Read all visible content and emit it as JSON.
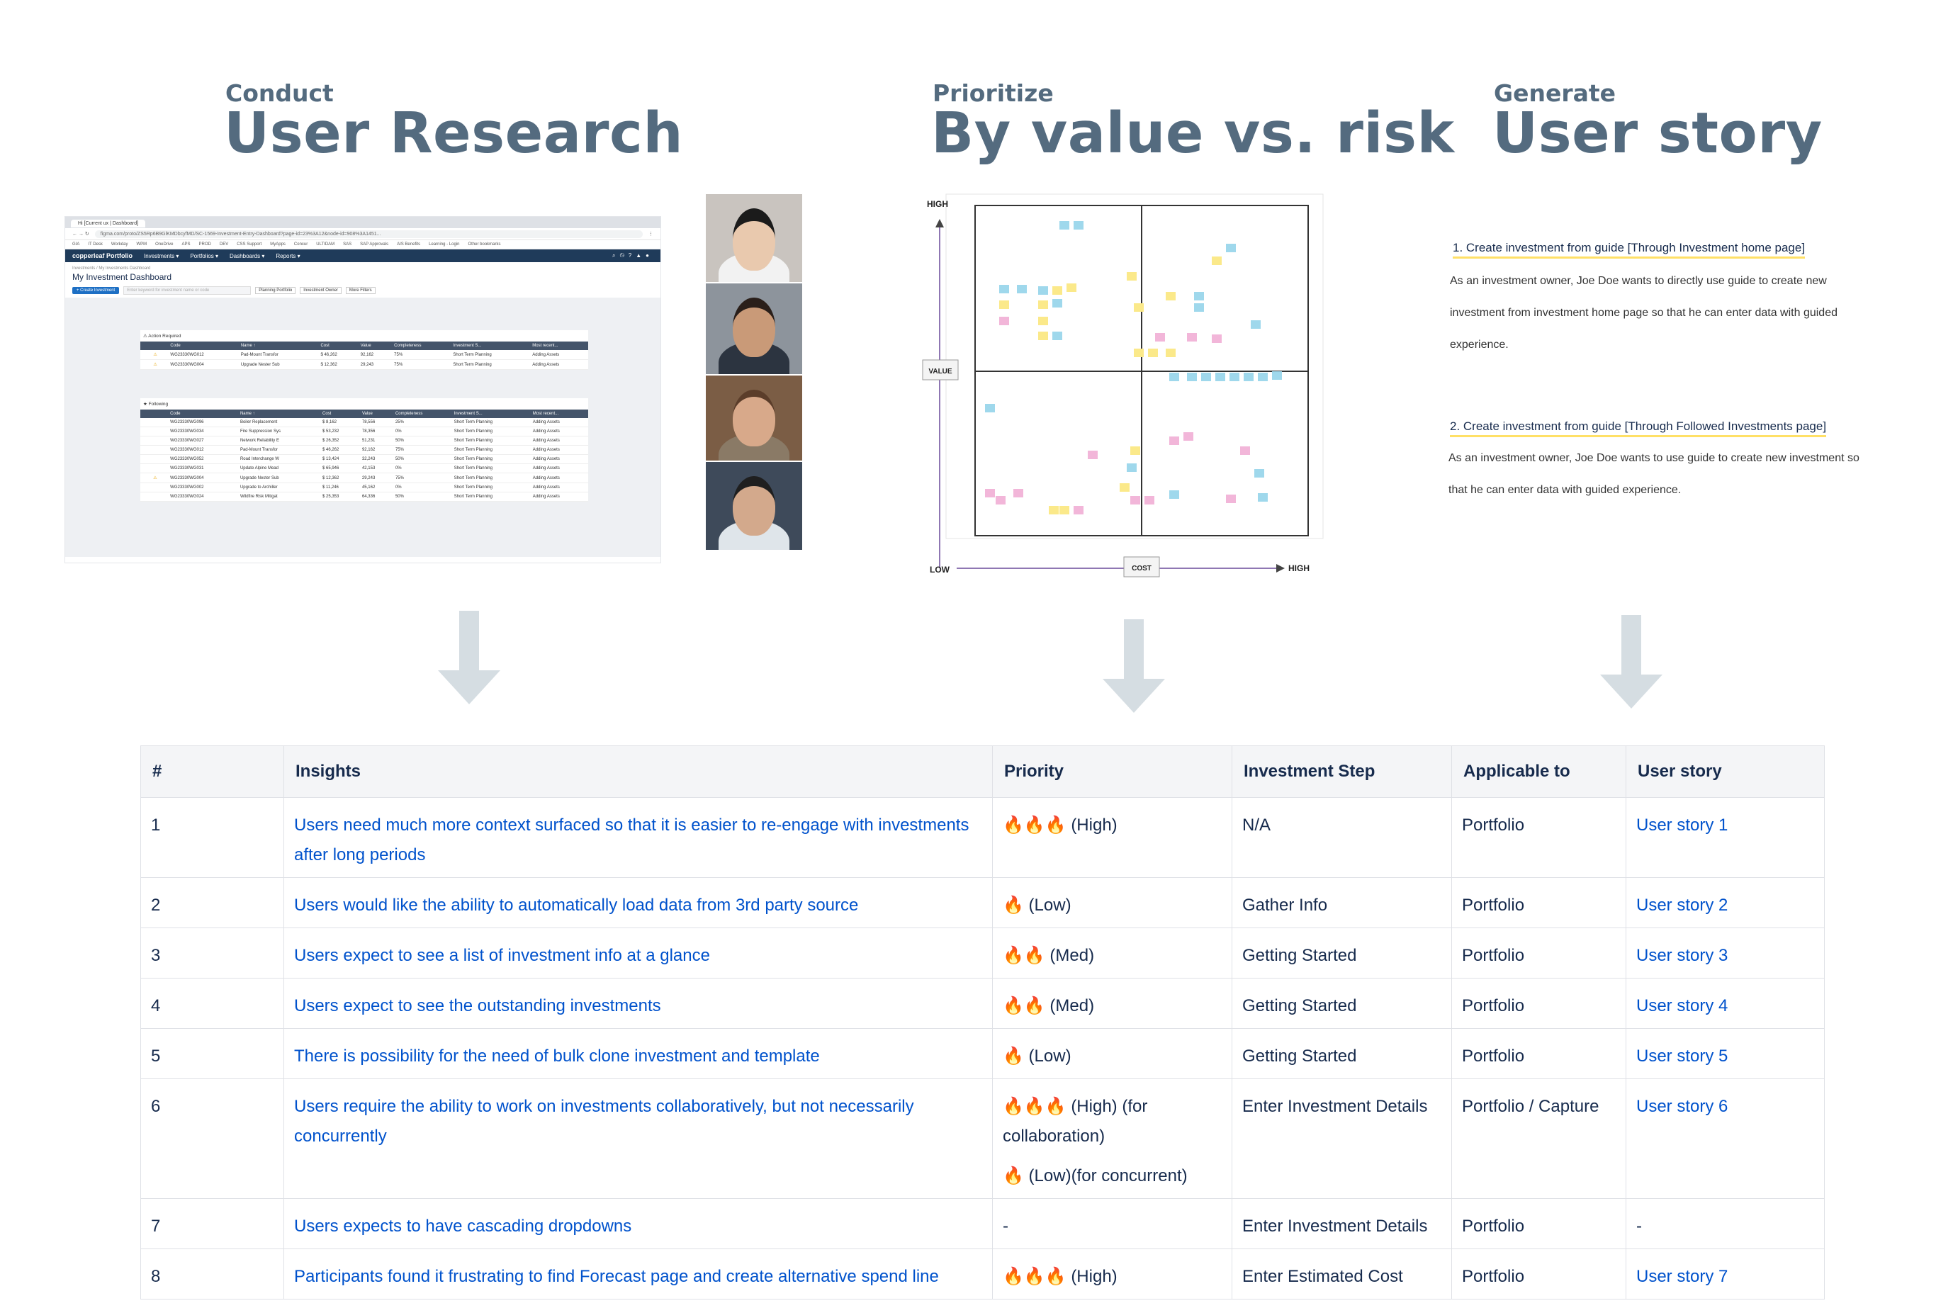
{
  "sections": [
    {
      "kicker": "Conduct",
      "title": "User Research"
    },
    {
      "kicker": "Prioritize",
      "title": "By value vs. risk"
    },
    {
      "kicker": "Generate",
      "title": "User story"
    }
  ],
  "browser": {
    "tab_label": "Hi [Current ux | Dashboard]",
    "url": "figma.com/proto/ZS5Rp6B9GlKMDbcyfMD/SC-1569-Investment-Entry-Dashboard?page-id=23%3A12&node-id=908%3A1451...",
    "bookmarks": [
      "GIA",
      "IT Desk",
      "Workday",
      "WPM",
      "OneDrive",
      "APS",
      "PROD",
      "DEV",
      "CSS Support",
      "MyApps",
      "Concur",
      "ULTIDAM",
      "SAS",
      "SAP Approvals",
      "AIS Benefits",
      "Learning - Login",
      "Other bookmarks"
    ],
    "brand": "copperleaf Portfolio",
    "nav": [
      "Investments ▾",
      "Portfolios ▾",
      "Dashboards ▾",
      "Reports ▾"
    ],
    "breadcrumb": "Investments / My Investments Dashboard",
    "page_title": "My Investment Dashboard",
    "create_button": "+ Create Investment",
    "search_placeholder": "Enter keyword for investment name or code",
    "filters": [
      "Planning Portfolio",
      "Investment Owner",
      "More Filters"
    ],
    "groups": [
      {
        "title": "⚠ Action Required",
        "columns": [
          "",
          "",
          "Code",
          "Name ↑",
          "Cost",
          "Value",
          "Completeness",
          "Investment S...",
          "Most recent..."
        ],
        "rows": [
          [
            "",
            "⚠",
            "WG23330WG012",
            "Pad-Mount Transfor",
            "$ 46,262",
            "92,162",
            "75%",
            "Short Term Planning",
            "Adding Assets"
          ],
          [
            "",
            "⚠",
            "WG23330WG004",
            "Upgrade Nester Sub",
            "$ 12,362",
            "29,243",
            "75%",
            "Short Term Planning",
            "Adding Assets"
          ]
        ]
      },
      {
        "title": "★ Following",
        "columns": [
          "",
          "",
          "Code",
          "Name ↑",
          "Cost",
          "Value",
          "Completeness",
          "Investment S...",
          "Most recent..."
        ],
        "rows": [
          [
            "",
            "",
            "WG23330WG096",
            "Boiler Replacement",
            "$ 8,162",
            "78,556",
            "25%",
            "Short Term Planning",
            "Adding Assets"
          ],
          [
            "",
            "",
            "WG23330WG034",
            "Fire Suppression Sys",
            "$ 53,232",
            "78,356",
            "0%",
            "Short Term Planning",
            "Adding Assets"
          ],
          [
            "",
            "",
            "WG23330WG027",
            "Network Reliability E",
            "$ 26,352",
            "51,231",
            "50%",
            "Short Term Planning",
            "Adding Assets"
          ],
          [
            "",
            "",
            "WG23330WG012",
            "Pad-Mount Transfor",
            "$ 46,262",
            "92,162",
            "75%",
            "Short Term Planning",
            "Adding Assets"
          ],
          [
            "",
            "",
            "WG23330WG052",
            "Road Interchange W",
            "$ 13,424",
            "32,243",
            "50%",
            "Short Term Planning",
            "Adding Assets"
          ],
          [
            "",
            "",
            "WG23330WG031",
            "Update Alpine Mead",
            "$ 65,946",
            "42,153",
            "0%",
            "Short Term Planning",
            "Adding Assets"
          ],
          [
            "",
            "⚠",
            "WG23330WG004",
            "Upgrade Nester Sub",
            "$ 12,362",
            "29,243",
            "75%",
            "Short Term Planning",
            "Adding Assets"
          ],
          [
            "",
            "",
            "WG23330WG002",
            "Upgrade to Archiller",
            "$ 11,246",
            "45,162",
            "0%",
            "Short Term Planning",
            "Adding Assets"
          ],
          [
            "",
            "",
            "WG23330WG024",
            "Wildfire Risk Mitigat",
            "$ 25,353",
            "64,336",
            "50%",
            "Short Term Planning",
            "Adding Assets"
          ]
        ]
      }
    ]
  },
  "matrix": {
    "y_high": "HIGH",
    "y_axis": "VALUE",
    "x_low": "LOW",
    "x_axis": "COST",
    "x_high": "HIGH",
    "note_colors": {
      "blue": "#9fd8ec",
      "yellow": "#fbe98a",
      "pink": "#f2b6d9"
    }
  },
  "stories": [
    {
      "title": "1. Create investment from guide [Through Investment home page]",
      "lines": [
        "As an investment owner, Joe Doe wants to directly use guide to create new",
        "investment from investment home page so that he can enter data with guided",
        "experience."
      ]
    },
    {
      "title": "2. Create investment from guide [Through Followed Investments page]",
      "lines": [
        "As an investment owner, Joe Doe wants to use guide to create new investment so",
        "that he can enter data with guided experience."
      ]
    }
  ],
  "insights_table": {
    "columns": [
      "#",
      "Insights",
      "Priority",
      "Investment Step",
      "Applicable to",
      "User story"
    ],
    "rows": [
      {
        "num": "1",
        "insight": "Users need much more context surfaced so that it is easier to re-engage with investments after long periods",
        "priority": [
          "🔥🔥🔥 (High)"
        ],
        "step": "N/A",
        "applicable": "Portfolio",
        "story": "User story 1"
      },
      {
        "num": "2",
        "insight": "Users would like the ability to automatically load data from 3rd party source",
        "priority": [
          "🔥 (Low)"
        ],
        "step": "Gather Info",
        "applicable": "Portfolio",
        "story": "User story 2"
      },
      {
        "num": "3",
        "insight": "Users expect to see a list of investment info at a glance",
        "priority": [
          "🔥🔥 (Med)"
        ],
        "step": "Getting Started",
        "applicable": "Portfolio",
        "story": "User story 3"
      },
      {
        "num": "4",
        "insight": "Users expect to see the outstanding investments",
        "priority": [
          "🔥🔥 (Med)"
        ],
        "step": "Getting Started",
        "applicable": "Portfolio",
        "story": "User story 4"
      },
      {
        "num": "5",
        "insight": "There is possibility for the need of bulk clone investment and template",
        "priority": [
          "🔥 (Low)"
        ],
        "step": "Getting Started",
        "applicable": "Portfolio",
        "story": "User story 5"
      },
      {
        "num": "6",
        "insight": "Users require the ability to work on investments collaboratively, but not necessarily concurrently",
        "priority": [
          "🔥🔥🔥 (High) (for collaboration)",
          "🔥 (Low)(for concurrent)"
        ],
        "step": "Enter Investment Details",
        "applicable": "Portfolio / Capture",
        "story": "User story 6"
      },
      {
        "num": "7",
        "insight": "Users expects to have cascading dropdowns",
        "priority": [
          "-"
        ],
        "step": "Enter Investment Details",
        "applicable": "Portfolio",
        "story": "-"
      },
      {
        "num": "8",
        "insight": "Participants found it frustrating to find Forecast page and create alternative spend line",
        "priority": [
          "🔥🔥🔥 (High)"
        ],
        "step": "Enter Estimated Cost",
        "applicable": "Portfolio",
        "story": "User story 7"
      }
    ]
  }
}
